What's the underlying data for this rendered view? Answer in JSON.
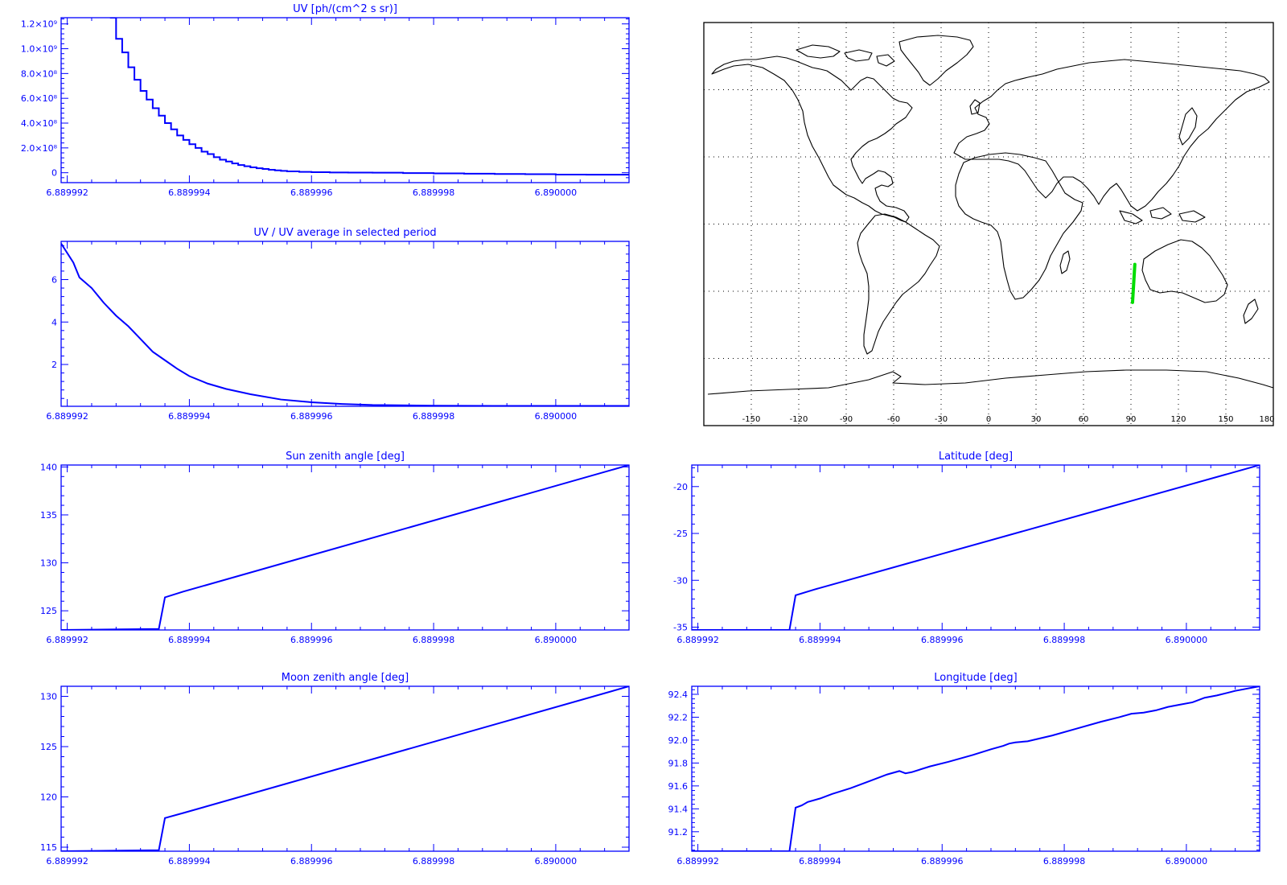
{
  "chart_data": [
    {
      "id": "uv",
      "type": "line",
      "step": true,
      "title": "UV [ph/(cm^2 s sr)]",
      "xlabel": "",
      "ylabel": "",
      "xlim": [
        6.8899919,
        6.8900012
      ],
      "ylim": [
        -80000000,
        1250000000
      ],
      "xticks": [
        6.889992,
        6.889994,
        6.889996,
        6.889998,
        6.89
      ],
      "xtick_labels": [
        "6.889992",
        "6.889994",
        "6.889996",
        "6.889998",
        "6.890000"
      ],
      "yticks": [
        0,
        200000000,
        400000000,
        600000000,
        800000000,
        1000000000,
        1200000000
      ],
      "ytick_labels": [
        "0",
        "2.0×10⁸",
        "4.0×10⁸",
        "6.0×10⁸",
        "8.0×10⁸",
        "1.0×10⁹",
        "1.2×10⁹"
      ],
      "series": [
        {
          "color": "#0000ff",
          "x": [
            6.8899927,
            6.8899928,
            6.8899929,
            6.889993,
            6.8899931,
            6.8899932,
            6.8899933,
            6.8899934,
            6.8899935,
            6.8899936,
            6.8899937,
            6.8899938,
            6.8899939,
            6.889994,
            6.8899941,
            6.8899942,
            6.8899943,
            6.8899944,
            6.8899945,
            6.8899946,
            6.8899947,
            6.8899948,
            6.8899949,
            6.889995,
            6.8899951,
            6.8899952,
            6.8899953,
            6.8899954,
            6.8899955,
            6.8899956,
            6.8899958,
            6.889996,
            6.8899963,
            6.8899966,
            6.889997,
            6.8899975,
            6.889998,
            6.8899985,
            6.889999,
            6.8899995,
            6.89,
            6.8900005,
            6.8900012
          ],
          "y": [
            1250000000,
            1080000000,
            970000000,
            850000000,
            750000000,
            660000000,
            590000000,
            520000000,
            460000000,
            400000000,
            350000000,
            300000000,
            265000000,
            230000000,
            200000000,
            170000000,
            150000000,
            125000000,
            105000000,
            90000000,
            75000000,
            62000000,
            52000000,
            43000000,
            36000000,
            30000000,
            24000000,
            19000000,
            15000000,
            11000000,
            7000000,
            4000000,
            2000000,
            1000000,
            0,
            -3000000,
            -5000000,
            -8000000,
            -10000000,
            -12000000,
            -15000000,
            -16000000,
            -16000000
          ]
        }
      ]
    },
    {
      "id": "uv_ratio",
      "type": "line",
      "title": "UV / UV average in selected period",
      "xlabel": "",
      "ylabel": "",
      "xlim": [
        6.8899919,
        6.8900012
      ],
      "ylim": [
        0.03,
        7.8
      ],
      "xticks": [
        6.889992,
        6.889994,
        6.889996,
        6.889998,
        6.89
      ],
      "xtick_labels": [
        "6.889992",
        "6.889994",
        "6.889996",
        "6.889998",
        "6.890000"
      ],
      "yticks": [
        2,
        4,
        6
      ],
      "ytick_labels": [
        "2",
        "4",
        "6"
      ],
      "series": [
        {
          "color": "#0000ff",
          "x": [
            6.8899919,
            6.8899921,
            6.8899922,
            6.8899924,
            6.8899926,
            6.8899928,
            6.889993,
            6.8899932,
            6.8899934,
            6.8899936,
            6.8899938,
            6.889994,
            6.8899943,
            6.8899946,
            6.889995,
            6.8899955,
            6.889996,
            6.8899965,
            6.889997,
            6.889998,
            6.889999,
            6.8900012
          ],
          "y": [
            7.7,
            6.8,
            6.1,
            5.6,
            4.9,
            4.3,
            3.8,
            3.2,
            2.6,
            2.2,
            1.8,
            1.45,
            1.1,
            0.85,
            0.6,
            0.35,
            0.22,
            0.14,
            0.09,
            0.06,
            0.05,
            0.05
          ]
        }
      ]
    },
    {
      "id": "map",
      "type": "map",
      "projection": "cylindrical",
      "xlim": [
        -180,
        180
      ],
      "ylim": [
        -90,
        90
      ],
      "grid_lon": [
        -150,
        -120,
        -90,
        -60,
        -30,
        0,
        30,
        60,
        90,
        120,
        150
      ],
      "grid_lat": [
        -60,
        -30,
        0,
        30,
        60
      ],
      "xtick_values": [
        -150,
        -120,
        -90,
        -60,
        -30,
        0,
        30,
        60,
        90,
        120,
        150,
        180
      ],
      "xtick_labels": [
        "-150",
        "-120",
        "-90",
        "-60",
        "-30",
        "0",
        "30",
        "60",
        "90",
        "120",
        "150",
        "180"
      ],
      "track": {
        "color": "#00dd00",
        "lon": [
          91.0,
          92.45
        ],
        "lat": [
          -35.0,
          -18.0
        ]
      }
    },
    {
      "id": "sun_zenith",
      "type": "line",
      "title": "Sun zenith angle [deg]",
      "xlabel": "",
      "ylabel": "",
      "xlim": [
        6.8899919,
        6.8900012
      ],
      "ylim": [
        123.0,
        140.2
      ],
      "xticks": [
        6.889992,
        6.889994,
        6.889996,
        6.889998,
        6.89
      ],
      "xtick_labels": [
        "6.889992",
        "6.889994",
        "6.889996",
        "6.889998",
        "6.890000"
      ],
      "yticks": [
        125,
        130,
        135,
        140
      ],
      "ytick_labels": [
        "125",
        "130",
        "135",
        "140"
      ],
      "series": [
        {
          "color": "#0000ff",
          "x": [
            6.8899919,
            6.8899935,
            6.8899936,
            6.8899939,
            6.8900012
          ],
          "y": [
            123.0,
            123.1,
            126.4,
            127.0,
            140.2
          ]
        }
      ]
    },
    {
      "id": "latitude",
      "type": "line",
      "title": "Latitude [deg]",
      "xlabel": "",
      "ylabel": "",
      "xlim": [
        6.8899919,
        6.8900012
      ],
      "ylim": [
        -35.3,
        -17.7
      ],
      "xticks": [
        6.889992,
        6.889994,
        6.889996,
        6.889998,
        6.89
      ],
      "xtick_labels": [
        "6.889992",
        "6.889994",
        "6.889996",
        "6.889998",
        "6.890000"
      ],
      "yticks": [
        -35,
        -30,
        -25,
        -20
      ],
      "ytick_labels": [
        "-35",
        "-30",
        "-25",
        "-20"
      ],
      "series": [
        {
          "color": "#0000ff",
          "x": [
            6.8899919,
            6.8899935,
            6.8899936,
            6.8899939,
            6.8900012
          ],
          "y": [
            -35.3,
            -35.3,
            -31.6,
            -31.0,
            -17.7
          ]
        }
      ]
    },
    {
      "id": "moon_zenith",
      "type": "line",
      "title": "Moon zenith angle [deg]",
      "xlabel": "",
      "ylabel": "",
      "xlim": [
        6.8899919,
        6.8900012
      ],
      "ylim": [
        114.6,
        131.0
      ],
      "xticks": [
        6.889992,
        6.889994,
        6.889996,
        6.889998,
        6.89
      ],
      "xtick_labels": [
        "6.889992",
        "6.889994",
        "6.889996",
        "6.889998",
        "6.890000"
      ],
      "yticks": [
        115,
        120,
        125,
        130
      ],
      "ytick_labels": [
        "115",
        "120",
        "125",
        "130"
      ],
      "series": [
        {
          "color": "#0000ff",
          "x": [
            6.8899919,
            6.8899935,
            6.8899936,
            6.8899939,
            6.8900012
          ],
          "y": [
            114.6,
            114.7,
            117.9,
            118.4,
            131.0
          ]
        }
      ]
    },
    {
      "id": "longitude",
      "type": "line",
      "title": "Longitude [deg]",
      "xlabel": "",
      "ylabel": "",
      "xlim": [
        6.8899919,
        6.8900012
      ],
      "ylim": [
        91.03,
        92.47
      ],
      "xticks": [
        6.889992,
        6.889994,
        6.889996,
        6.889998,
        6.89
      ],
      "xtick_labels": [
        "6.889992",
        "6.889994",
        "6.889996",
        "6.889998",
        "6.890000"
      ],
      "yticks": [
        91.2,
        91.4,
        91.6,
        91.8,
        92.0,
        92.2,
        92.4
      ],
      "ytick_labels": [
        "91.2",
        "91.4",
        "91.6",
        "91.8",
        "92.0",
        "92.2",
        "92.4"
      ],
      "series": [
        {
          "color": "#0000ff",
          "x": [
            6.8899919,
            6.8899935,
            6.8899936,
            6.8899937,
            6.8899938,
            6.889994,
            6.8899941,
            6.8899942,
            6.8899945,
            6.8899948,
            6.8899951,
            6.8899953,
            6.8899954,
            6.8899955,
            6.8899958,
            6.8899961,
            6.8899965,
            6.8899968,
            6.889997,
            6.8899971,
            6.8899972,
            6.8899974,
            6.8899978,
            6.8899982,
            6.8899986,
            6.8899989,
            6.8899991,
            6.8899993,
            6.8899995,
            6.8899997,
            6.8899999,
            6.8900001,
            6.8900003,
            6.8900005,
            6.8900008,
            6.8900012
          ],
          "y": [
            91.03,
            91.03,
            91.41,
            91.43,
            91.46,
            91.49,
            91.51,
            91.53,
            91.58,
            91.64,
            91.7,
            91.73,
            91.71,
            91.72,
            91.77,
            91.81,
            91.87,
            91.92,
            91.95,
            91.97,
            91.98,
            91.99,
            92.04,
            92.1,
            92.16,
            92.2,
            92.23,
            92.24,
            92.26,
            92.29,
            92.31,
            92.33,
            92.37,
            92.39,
            92.43,
            92.47
          ]
        }
      ]
    }
  ]
}
